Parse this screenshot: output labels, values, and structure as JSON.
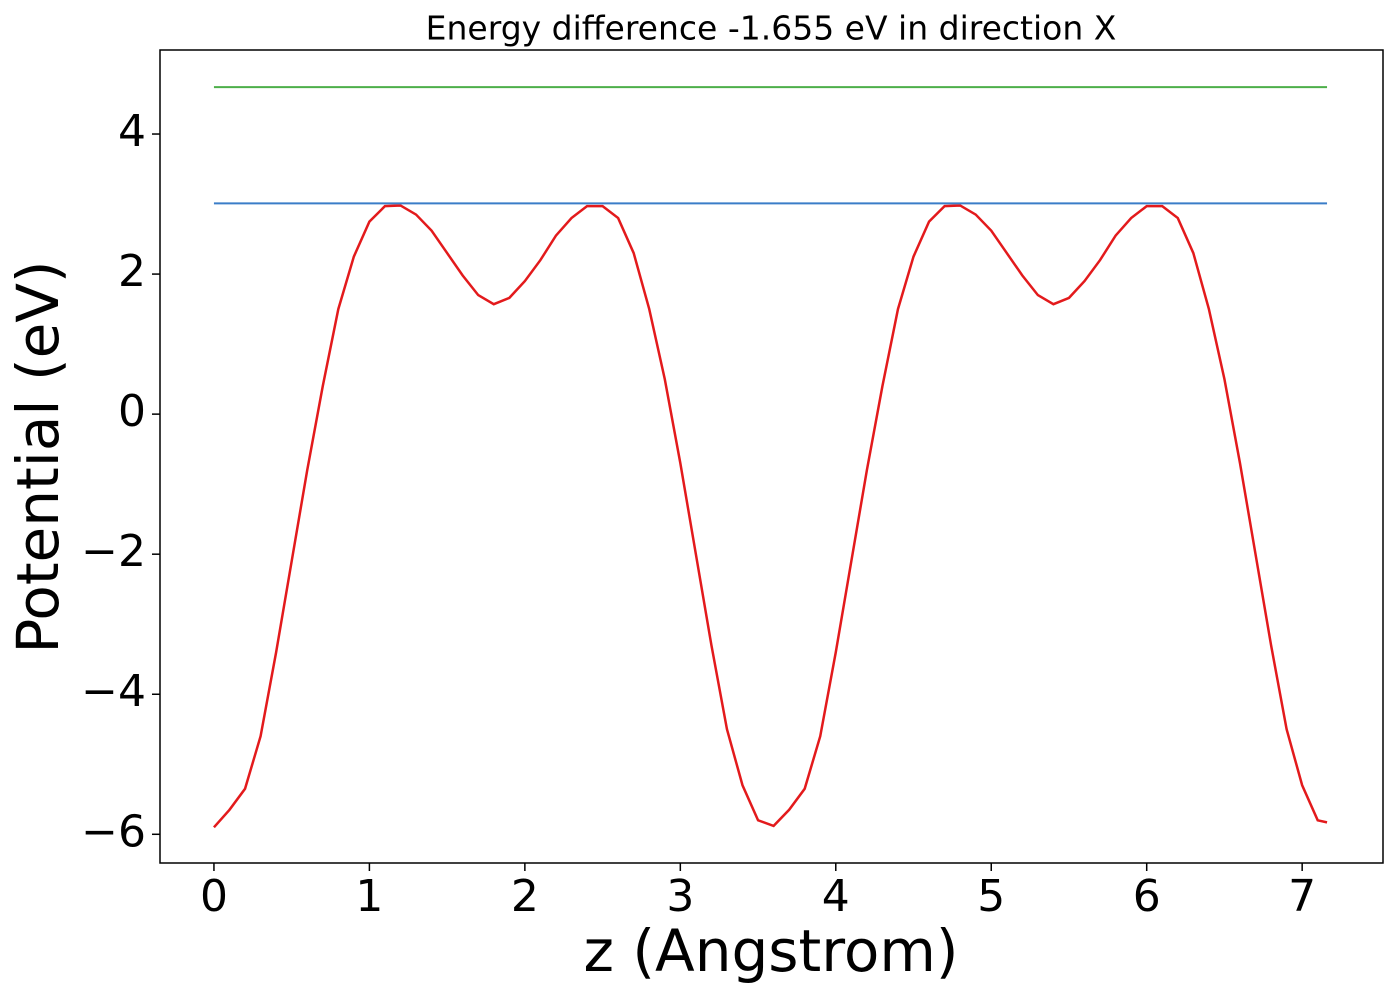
{
  "chart_data": {
    "type": "line",
    "title": "Energy difference -1.655 eV in direction X",
    "xlabel": "z (Angstrom)",
    "ylabel": "Potential (eV)",
    "xlim": [
      -0.347,
      7.52
    ],
    "ylim": [
      -6.41,
      5.2
    ],
    "xticks": [
      0,
      1,
      2,
      3,
      4,
      5,
      6,
      7
    ],
    "yticks": [
      {
        "value": -6,
        "label": "−6"
      },
      {
        "value": -4,
        "label": "−4"
      },
      {
        "value": -2,
        "label": "−2"
      },
      0,
      2,
      4
    ],
    "grid": false,
    "series": [
      {
        "color": "#e31a1c",
        "x": [
          0,
          0.1,
          0.2,
          0.3,
          0.4,
          0.5,
          0.6,
          0.7,
          0.8,
          0.9,
          1.0,
          1.1,
          1.2,
          1.3,
          1.4,
          1.5,
          1.6,
          1.7,
          1.8,
          1.9,
          2.0,
          2.1,
          2.2,
          2.3,
          2.4,
          2.5,
          2.6,
          2.7,
          2.8,
          2.9,
          3.0,
          3.1,
          3.2,
          3.3,
          3.4,
          3.5,
          3.6,
          3.7,
          3.8,
          3.9,
          4.0,
          4.1,
          4.2,
          4.3,
          4.4,
          4.5,
          4.6,
          4.7,
          4.8,
          4.9,
          5.0,
          5.1,
          5.2,
          5.3,
          5.4,
          5.5,
          5.6,
          5.7,
          5.8,
          5.9,
          6.0,
          6.1,
          6.2,
          6.3,
          6.4,
          6.5,
          6.6,
          6.7,
          6.8,
          6.9,
          7.0,
          7.1,
          7.16
        ],
        "values": [
          -5.9,
          -5.65,
          -5.35,
          -4.6,
          -3.4,
          -2.1,
          -0.8,
          0.4,
          1.5,
          2.25,
          2.75,
          2.97,
          2.98,
          2.85,
          2.62,
          2.3,
          1.98,
          1.7,
          1.57,
          1.66,
          1.9,
          2.2,
          2.55,
          2.8,
          2.97,
          2.97,
          2.8,
          2.3,
          1.5,
          0.5,
          -0.7,
          -2.0,
          -3.3,
          -4.5,
          -5.3,
          -5.8,
          -5.88,
          -5.65,
          -5.35,
          -4.6,
          -3.4,
          -2.1,
          -0.8,
          0.4,
          1.5,
          2.25,
          2.75,
          2.97,
          2.98,
          2.85,
          2.62,
          2.3,
          1.98,
          1.7,
          1.57,
          1.66,
          1.9,
          2.2,
          2.55,
          2.8,
          2.97,
          2.97,
          2.8,
          2.3,
          1.5,
          0.5,
          -0.7,
          -2.0,
          -3.3,
          -4.5,
          -5.3,
          -5.8,
          -5.83
        ]
      },
      {
        "color": "#3a7dc8",
        "x": [
          0,
          7.16
        ],
        "values": [
          3.01,
          3.01
        ]
      },
      {
        "color": "#4daf4a",
        "x": [
          0,
          7.16
        ],
        "values": [
          4.67,
          4.67
        ]
      }
    ]
  }
}
